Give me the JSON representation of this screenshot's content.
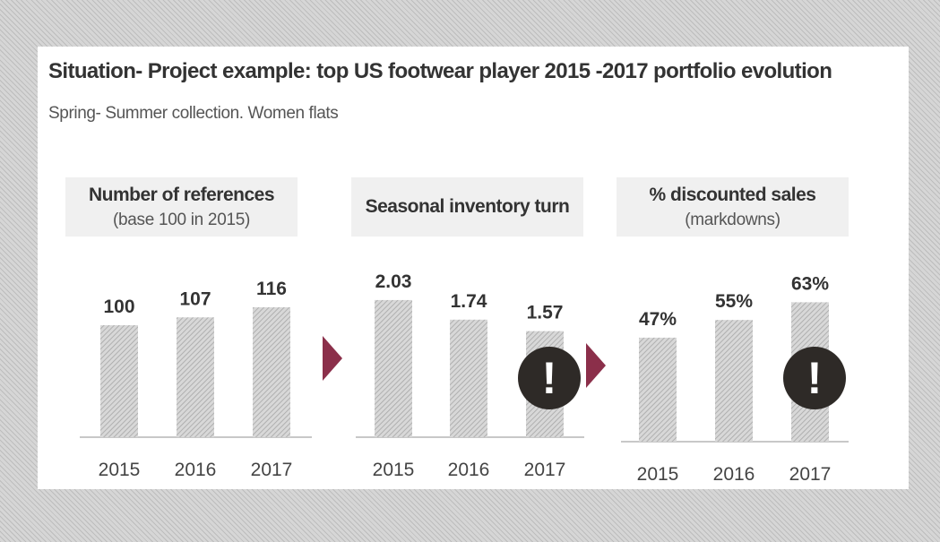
{
  "title": "Situation- Project example: top US footwear player 2015 -2017 portfolio evolution",
  "subtitle": "Spring- Summer collection. Women flats",
  "colors": {
    "accent": "#8b2f4a",
    "alert": "#2e2a27",
    "bar_fill": "#d8d8d8",
    "bar_hatch": "#a6a6a6"
  },
  "chart_data": [
    {
      "type": "bar",
      "title": "Number of references",
      "subtitle": "(base 100 in 2015)",
      "categories": [
        "2015",
        "2016",
        "2017"
      ],
      "values": [
        100,
        107,
        116
      ],
      "data_labels": [
        "100",
        "107",
        "116"
      ],
      "alert": false
    },
    {
      "type": "bar",
      "title": "Seasonal inventory turn",
      "subtitle": "",
      "categories": [
        "2015",
        "2016",
        "2017"
      ],
      "values": [
        2.03,
        1.74,
        1.57
      ],
      "data_labels": [
        "2.03",
        "1.74",
        "1.57"
      ],
      "alert": true,
      "alert_symbol": "!",
      "alert_icon": "exclamation-circle-icon"
    },
    {
      "type": "bar",
      "title": "% discounted sales",
      "subtitle": "(markdowns)",
      "categories": [
        "2015",
        "2016",
        "2017"
      ],
      "values": [
        47,
        55,
        63
      ],
      "data_labels": [
        "47%",
        "55%",
        "63%"
      ],
      "alert": true,
      "alert_symbol": "!",
      "alert_icon": "exclamation-circle-icon"
    }
  ],
  "arrows": [
    "arrow-right-icon",
    "arrow-right-icon"
  ]
}
